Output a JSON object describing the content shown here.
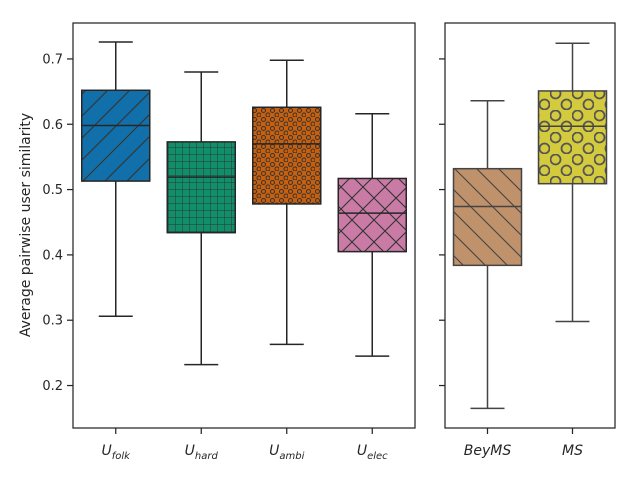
{
  "chart_data": [
    {
      "type": "box",
      "ylabel": "Average pairwise user similarity",
      "ylim": [
        0.135,
        0.755
      ],
      "yticks": [
        0.2,
        0.3,
        0.4,
        0.5,
        0.6,
        0.7
      ],
      "grid": false,
      "boxes": [
        {
          "label": "U",
          "sub": "folk",
          "color": "#1170aa",
          "hatch": "diagonal-forward",
          "whisker_low": 0.306,
          "q1": 0.513,
          "median": 0.598,
          "q3": 0.652,
          "whisker_high": 0.726
        },
        {
          "label": "U",
          "sub": "hard",
          "color": "#0f8f6a",
          "hatch": "grid",
          "whisker_low": 0.232,
          "q1": 0.434,
          "median": 0.519,
          "q3": 0.573,
          "whisker_high": 0.68
        },
        {
          "label": "U",
          "sub": "ambi",
          "color": "#c6600f",
          "hatch": "dots",
          "whisker_low": 0.263,
          "q1": 0.478,
          "median": 0.57,
          "q3": 0.626,
          "whisker_high": 0.698
        },
        {
          "label": "U",
          "sub": "elec",
          "color": "#c97ba6",
          "hatch": "cross",
          "whisker_low": 0.245,
          "q1": 0.405,
          "median": 0.464,
          "q3": 0.517,
          "whisker_high": 0.616
        }
      ]
    },
    {
      "type": "box",
      "ylim": [
        0.135,
        0.755
      ],
      "grid": false,
      "boxes": [
        {
          "label": "BeyMS",
          "sub": "",
          "color": "#c0926b",
          "hatch": "diagonal-back",
          "whisker_low": 0.165,
          "q1": 0.384,
          "median": 0.474,
          "q3": 0.532,
          "whisker_high": 0.636
        },
        {
          "label": "MS",
          "sub": "",
          "color": "#d4ca3d",
          "hatch": "circles",
          "whisker_low": 0.298,
          "q1": 0.509,
          "median": 0.597,
          "q3": 0.651,
          "whisker_high": 0.724
        }
      ]
    }
  ]
}
